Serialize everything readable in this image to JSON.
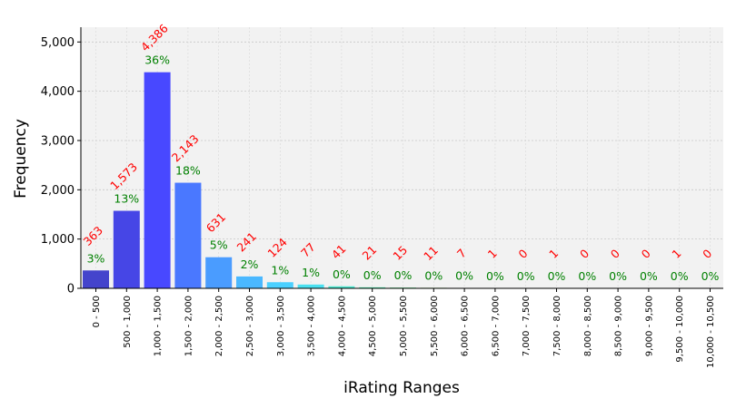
{
  "chart_data": {
    "type": "bar",
    "xlabel": "iRating Ranges",
    "ylabel": "Frequency",
    "ylim": [
      0,
      5300
    ],
    "y_ticks": [
      0,
      1000,
      2000,
      3000,
      4000,
      5000
    ],
    "y_tick_labels": [
      "0",
      "1,000",
      "2,000",
      "3,000",
      "4,000",
      "5,000"
    ],
    "grid": true,
    "categories": [
      "0 - 500",
      "500 - 1,000",
      "1,000 - 1,500",
      "1,500 - 2,000",
      "2,000 - 2,500",
      "2,500 - 3,000",
      "3,000 - 3,500",
      "3,500 - 4,000",
      "4,000 - 4,500",
      "4,500 - 5,000",
      "5,000 - 5,500",
      "5,500 - 6,000",
      "6,000 - 6,500",
      "6,500 - 7,000",
      "7,000 - 7,500",
      "7,500 - 8,000",
      "8,000 - 8,500",
      "8,500 - 9,000",
      "9,000 - 9,500",
      "9,500 - 10,000",
      "10,000 - 10,500"
    ],
    "values": [
      363,
      1573,
      4386,
      2143,
      631,
      241,
      124,
      77,
      41,
      21,
      15,
      11,
      7,
      1,
      0,
      1,
      0,
      0,
      0,
      1,
      0
    ],
    "count_labels": [
      "363",
      "1,573",
      "4,386",
      "2,143",
      "631",
      "241",
      "124",
      "77",
      "41",
      "21",
      "15",
      "11",
      "7",
      "1",
      "0",
      "1",
      "0",
      "0",
      "0",
      "1",
      "0"
    ],
    "percent_labels": [
      "3%",
      "13%",
      "36%",
      "18%",
      "5%",
      "2%",
      "1%",
      "1%",
      "0%",
      "0%",
      "0%",
      "0%",
      "0%",
      "0%",
      "0%",
      "0%",
      "0%",
      "0%",
      "0%",
      "0%",
      "0%"
    ],
    "bar_colors": [
      "#4444cc",
      "#4646e6",
      "#4848ff",
      "#4a78ff",
      "#4a9cff",
      "#4ab8ff",
      "#4ad0ff",
      "#4ae0f0",
      "#4ae8d0",
      "#50ecb0",
      "#60f090",
      "#80f070",
      "#a0f060",
      "#c0f050",
      "#d8f040",
      "#e8f040",
      "#f0f040",
      "#f0e040",
      "#f0d040",
      "#f0c040",
      "#f0b040"
    ],
    "colors": {
      "count_label": "#ff0000",
      "percent_label": "#008000",
      "plot_background": "#f2f2f2"
    }
  }
}
